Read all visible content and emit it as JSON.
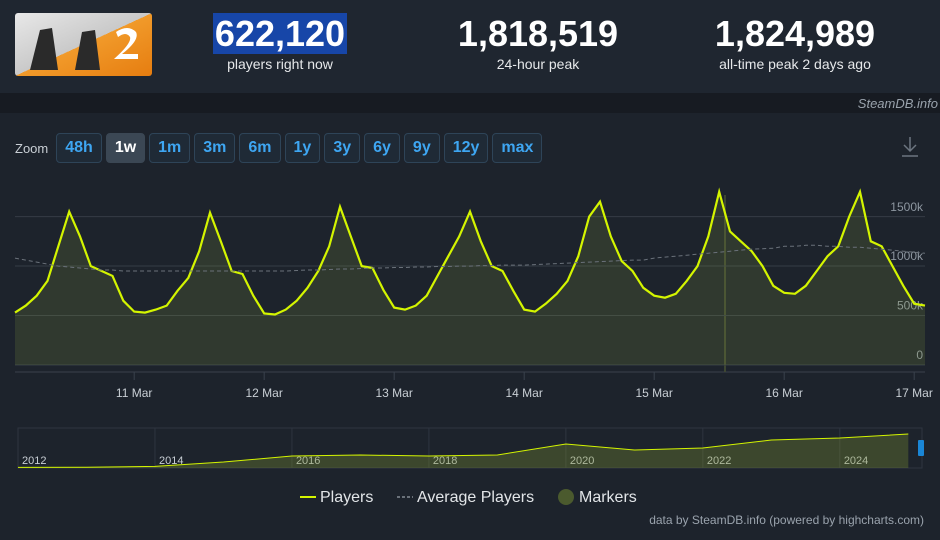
{
  "stats": [
    {
      "value": "622,120",
      "label": "players right now"
    },
    {
      "value": "1,818,519",
      "label": "24-hour peak"
    },
    {
      "value": "1,824,989",
      "label": "all-time peak 2 days ago"
    }
  ],
  "source": "SteamDB.info",
  "zoom": {
    "label": "Zoom",
    "buttons": [
      "48h",
      "1w",
      "1m",
      "3m",
      "6m",
      "1y",
      "3y",
      "6y",
      "9y",
      "12y",
      "max"
    ],
    "active": "1w"
  },
  "credit": "data by SteamDB.info (powered by highcharts.com)",
  "chart_data": [
    {
      "type": "line",
      "categories": [
        null,
        null,
        null,
        null,
        null,
        null,
        null,
        null,
        null,
        null,
        null,
        "11 Mar",
        null,
        null,
        null,
        null,
        null,
        null,
        null,
        null,
        null,
        null,
        null,
        "12 Mar",
        null,
        null,
        null,
        null,
        null,
        null,
        null,
        null,
        null,
        null,
        null,
        "13 Mar",
        null,
        null,
        null,
        null,
        null,
        null,
        null,
        null,
        null,
        null,
        null,
        "14 Mar",
        null,
        null,
        null,
        null,
        null,
        null,
        null,
        null,
        null,
        null,
        null,
        "15 Mar",
        null,
        null,
        null,
        null,
        null,
        null,
        null,
        null,
        null,
        null,
        null,
        "16 Mar",
        null,
        null,
        null,
        null,
        null,
        null,
        null,
        null,
        null,
        null,
        null,
        "17 Mar",
        null
      ],
      "series": [
        {
          "name": "Players",
          "color": "#d4f500",
          "fill": "rgba(140,160,60,0.18)",
          "values": [
            530000,
            600000,
            700000,
            850000,
            1200000,
            1550000,
            1300000,
            1000000,
            950000,
            900000,
            650000,
            540000,
            530000,
            560000,
            600000,
            750000,
            880000,
            1150000,
            1540000,
            1250000,
            950000,
            920000,
            700000,
            520000,
            510000,
            560000,
            650000,
            780000,
            950000,
            1200000,
            1600000,
            1300000,
            1000000,
            980000,
            760000,
            580000,
            560000,
            600000,
            700000,
            900000,
            1100000,
            1300000,
            1550000,
            1250000,
            1000000,
            950000,
            750000,
            560000,
            540000,
            620000,
            720000,
            850000,
            1100000,
            1500000,
            1650000,
            1300000,
            1050000,
            950000,
            780000,
            700000,
            680000,
            720000,
            850000,
            1000000,
            1300000,
            1750000,
            1350000,
            1250000,
            1150000,
            1000000,
            800000,
            730000,
            720000,
            800000,
            950000,
            1100000,
            1200000,
            1500000,
            1750000,
            1250000,
            1200000,
            1000000,
            800000,
            620000,
            600000
          ]
        },
        {
          "name": "Average Players",
          "color": "#6a717a",
          "dashed": true,
          "values": [
            1080000,
            1060000,
            1040000,
            1020000,
            1000000,
            990000,
            980000,
            970000,
            960000,
            960000,
            950000,
            950000,
            950000,
            950000,
            950000,
            950000,
            950000,
            950000,
            950000,
            950000,
            950000,
            950000,
            950000,
            950000,
            950000,
            950000,
            955000,
            960000,
            960000,
            965000,
            970000,
            970000,
            975000,
            980000,
            980000,
            985000,
            985000,
            990000,
            990000,
            995000,
            995000,
            1000000,
            1000000,
            1005000,
            1005000,
            1010000,
            1010000,
            1010000,
            1015000,
            1020000,
            1025000,
            1030000,
            1035000,
            1040000,
            1045000,
            1050000,
            1055000,
            1060000,
            1060000,
            1080000,
            1090000,
            1100000,
            1110000,
            1120000,
            1130000,
            1140000,
            1150000,
            1160000,
            1170000,
            1175000,
            1180000,
            1200000,
            1200000,
            1210000,
            1210000,
            1200000,
            1200000,
            1190000,
            1190000,
            1180000,
            1170000,
            1160000,
            1150000,
            1140000,
            1130000
          ]
        }
      ],
      "markers": {
        "name": "Markers",
        "color": "#4b5a2e"
      },
      "ylim": [
        0,
        1900000
      ],
      "yticks": [
        {
          "value": 0,
          "label": "0"
        },
        {
          "value": 500000,
          "label": "500k"
        },
        {
          "value": 1000000,
          "label": "1000k"
        },
        {
          "value": 1500000,
          "label": "1500k"
        }
      ],
      "grid": true
    },
    {
      "type": "area",
      "color": "#d4f500",
      "fill": "rgba(120,140,50,0.35)",
      "x": [
        2012,
        2013,
        2014,
        2015,
        2016,
        2017,
        2018,
        2019,
        2020,
        2021,
        2022,
        2023,
        2024,
        2025
      ],
      "values": [
        30000,
        40000,
        80000,
        300000,
        600000,
        650000,
        600000,
        650000,
        1200000,
        900000,
        1000000,
        1400000,
        1500000,
        1700000
      ],
      "xlim": [
        2012,
        2025.2
      ],
      "xticks": [
        2012,
        2014,
        2016,
        2018,
        2020,
        2022,
        2024
      ]
    }
  ]
}
